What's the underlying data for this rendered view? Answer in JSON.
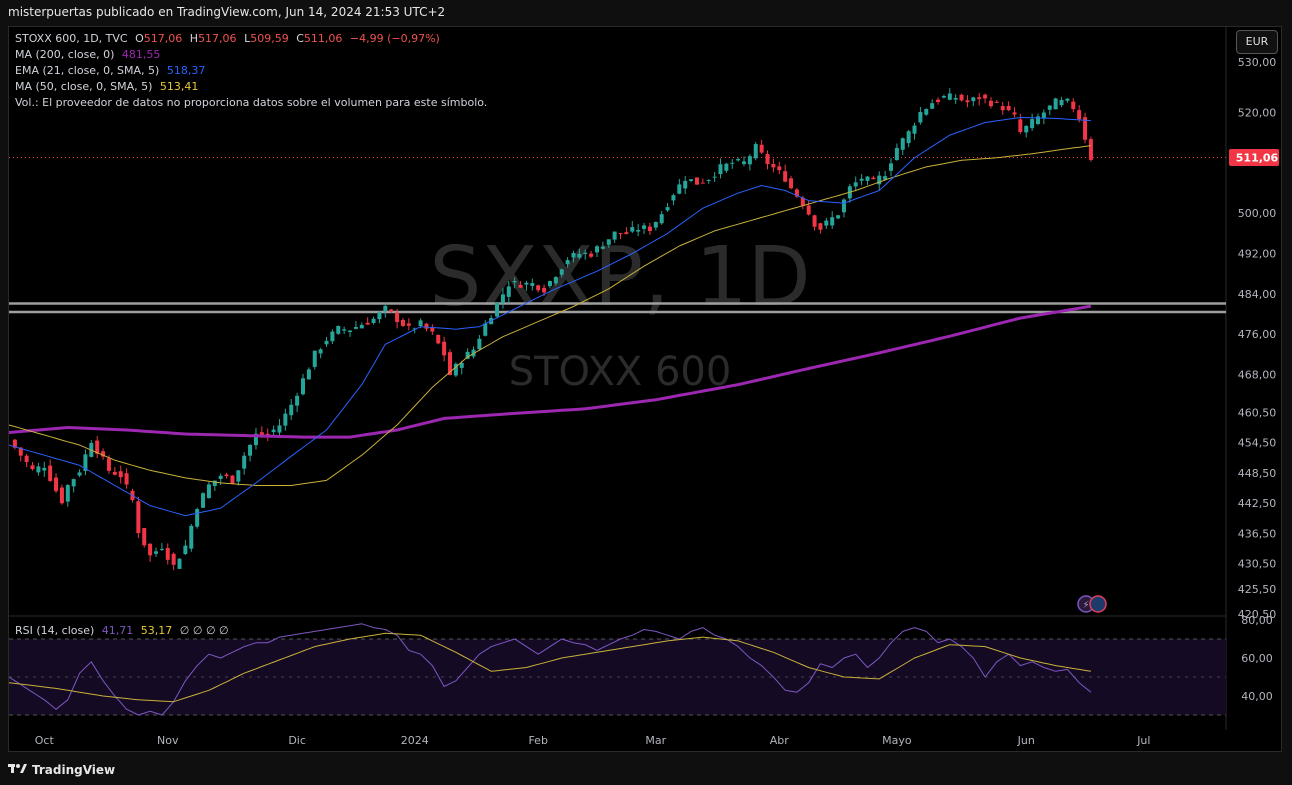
{
  "header": {
    "publisher": "misterpuertas publicado en TradingView.com, Jun 14, 2024 21:53 UTC+2"
  },
  "legend": {
    "symbol": "STOXX 600, 1D, TVC",
    "o_label": "O",
    "o": "517,06",
    "h_label": "H",
    "h": "517,06",
    "l_label": "L",
    "l": "509,59",
    "c_label": "C",
    "c": "511,06",
    "change": "−4,99 (−0,97%)",
    "ma200_label": "MA (200, close, 0)",
    "ma200": "481,55",
    "ema21_label": "EMA (21, close, 0, SMA, 5)",
    "ema21": "518,37",
    "ma50_label": "MA (50, close, 0, SMA, 5)",
    "ma50": "513,41",
    "vol_text": "Vol.: El proveedor de datos no proporciona datos sobre el volumen para este símbolo."
  },
  "rsi_legend": {
    "label": "RSI (14, close)",
    "v1": "41,71",
    "v2": "53,17",
    "rest": "∅ ∅ ∅ ∅"
  },
  "currency": "EUR",
  "watermark": {
    "big": "SXXP, 1D",
    "small": "STOXX 600"
  },
  "last_price_label": "511,06",
  "footer": {
    "brand": "TradingView"
  },
  "colors": {
    "up": "#26a69a",
    "down": "#f23645",
    "ma200": "#9c27b0",
    "ema21": "#2962ff",
    "ma50": "#c9b13a",
    "rsi": "#7e57c2"
  },
  "chart_data": {
    "type": "candlestick",
    "title": "STOXX 600, 1D, TVC",
    "price_axis": {
      "ticks": [
        "530,00",
        "520,00",
        "511,06",
        "500,00",
        "492,00",
        "484,00",
        "476,00",
        "468,00",
        "460,50",
        "454,50",
        "448,50",
        "442,50",
        "436,50",
        "430,50",
        "425,50",
        "420,50"
      ],
      "range": [
        420,
        532
      ]
    },
    "time_axis": {
      "ticks": [
        "Oct",
        "Nov",
        "Dic",
        "2024",
        "Feb",
        "Mar",
        "Abr",
        "Mayo",
        "Jun",
        "Jul"
      ]
    },
    "horizontal_lines": [
      482.1,
      480.4
    ],
    "last_price": 511.06,
    "close_path": [
      [
        0,
        455
      ],
      [
        2,
        452
      ],
      [
        4,
        449
      ],
      [
        6,
        450
      ],
      [
        8,
        445
      ],
      [
        9,
        443
      ],
      [
        10,
        446
      ],
      [
        12,
        449
      ],
      [
        14,
        455
      ],
      [
        15,
        453
      ],
      [
        17,
        449
      ],
      [
        19,
        448
      ],
      [
        21,
        443
      ],
      [
        22,
        437
      ],
      [
        24,
        432
      ],
      [
        26,
        434
      ],
      [
        27,
        432
      ],
      [
        28,
        430
      ],
      [
        30,
        434
      ],
      [
        32,
        442
      ],
      [
        34,
        446
      ],
      [
        36,
        448
      ],
      [
        38,
        447
      ],
      [
        40,
        452
      ],
      [
        42,
        456
      ],
      [
        44,
        456
      ],
      [
        46,
        458
      ],
      [
        48,
        462
      ],
      [
        50,
        467
      ],
      [
        52,
        472
      ],
      [
        54,
        475
      ],
      [
        56,
        477
      ],
      [
        58,
        477
      ],
      [
        60,
        478
      ],
      [
        62,
        479
      ],
      [
        64,
        481
      ],
      [
        66,
        479
      ],
      [
        68,
        477
      ],
      [
        70,
        478
      ],
      [
        72,
        476
      ],
      [
        74,
        472
      ],
      [
        75,
        468
      ],
      [
        77,
        471
      ],
      [
        79,
        473
      ],
      [
        81,
        478
      ],
      [
        83,
        482
      ],
      [
        85,
        486
      ],
      [
        87,
        486
      ],
      [
        89,
        486
      ],
      [
        91,
        485
      ],
      [
        93,
        488
      ],
      [
        95,
        491
      ],
      [
        97,
        492
      ],
      [
        99,
        492
      ],
      [
        101,
        494
      ],
      [
        103,
        496
      ],
      [
        105,
        496
      ],
      [
        107,
        497
      ],
      [
        109,
        497
      ],
      [
        111,
        500
      ],
      [
        113,
        504
      ],
      [
        115,
        507
      ],
      [
        117,
        506
      ],
      [
        119,
        507
      ],
      [
        121,
        509
      ],
      [
        123,
        510
      ],
      [
        125,
        510
      ],
      [
        127,
        513
      ],
      [
        129,
        510
      ],
      [
        131,
        508
      ],
      [
        132,
        507
      ],
      [
        133,
        505
      ],
      [
        135,
        502
      ],
      [
        136,
        500
      ],
      [
        137,
        498
      ],
      [
        138,
        497
      ],
      [
        139,
        498
      ],
      [
        141,
        500
      ],
      [
        143,
        505
      ],
      [
        145,
        507
      ],
      [
        147,
        506
      ],
      [
        149,
        508
      ],
      [
        151,
        513
      ],
      [
        153,
        516
      ],
      [
        155,
        520
      ],
      [
        157,
        522
      ],
      [
        159,
        523
      ],
      [
        161,
        523
      ],
      [
        163,
        522
      ],
      [
        165,
        523
      ],
      [
        167,
        522
      ],
      [
        169,
        521
      ],
      [
        171,
        519
      ],
      [
        172,
        516
      ],
      [
        174,
        518
      ],
      [
        176,
        520
      ],
      [
        178,
        522
      ],
      [
        180,
        522
      ],
      [
        181,
        521
      ],
      [
        182,
        519
      ],
      [
        183,
        515
      ],
      [
        184,
        511
      ]
    ],
    "ma200_path": [
      [
        0,
        456.5
      ],
      [
        10,
        457.5
      ],
      [
        20,
        457
      ],
      [
        30,
        456.2
      ],
      [
        40,
        455.9
      ],
      [
        50,
        455.6
      ],
      [
        58,
        455.6
      ],
      [
        66,
        457
      ],
      [
        74,
        459.3
      ],
      [
        86,
        460.3
      ],
      [
        98,
        461.2
      ],
      [
        110,
        463
      ],
      [
        124,
        466
      ],
      [
        136,
        469.2
      ],
      [
        148,
        472.3
      ],
      [
        160,
        475.6
      ],
      [
        172,
        479.2
      ],
      [
        184,
        481.55
      ]
    ],
    "ema21_path": [
      [
        0,
        454
      ],
      [
        6,
        452
      ],
      [
        12,
        450
      ],
      [
        18,
        446
      ],
      [
        24,
        442
      ],
      [
        30,
        440
      ],
      [
        36,
        441.5
      ],
      [
        42,
        446.5
      ],
      [
        48,
        451.8
      ],
      [
        54,
        457
      ],
      [
        60,
        466
      ],
      [
        64,
        474
      ],
      [
        70,
        477.5
      ],
      [
        76,
        477
      ],
      [
        80,
        477.5
      ],
      [
        86,
        481
      ],
      [
        92,
        484.5
      ],
      [
        100,
        488.5
      ],
      [
        106,
        492
      ],
      [
        112,
        496
      ],
      [
        118,
        501
      ],
      [
        124,
        504
      ],
      [
        128,
        505.5
      ],
      [
        132,
        504.5
      ],
      [
        136,
        502.5
      ],
      [
        142,
        502
      ],
      [
        148,
        504.5
      ],
      [
        154,
        511
      ],
      [
        160,
        515.5
      ],
      [
        166,
        518
      ],
      [
        172,
        519
      ],
      [
        178,
        518.8
      ],
      [
        184,
        518.37
      ]
    ],
    "ma50_path": [
      [
        0,
        458
      ],
      [
        6,
        456
      ],
      [
        12,
        454
      ],
      [
        18,
        451
      ],
      [
        24,
        449
      ],
      [
        30,
        447.5
      ],
      [
        36,
        446.5
      ],
      [
        42,
        446
      ],
      [
        48,
        446
      ],
      [
        54,
        447
      ],
      [
        60,
        452
      ],
      [
        66,
        458
      ],
      [
        72,
        465.5
      ],
      [
        78,
        471.5
      ],
      [
        84,
        475.5
      ],
      [
        90,
        478.5
      ],
      [
        96,
        481.5
      ],
      [
        102,
        485
      ],
      [
        108,
        489.5
      ],
      [
        114,
        493.5
      ],
      [
        120,
        496.5
      ],
      [
        126,
        498.5
      ],
      [
        132,
        500.5
      ],
      [
        138,
        502.5
      ],
      [
        144,
        504.5
      ],
      [
        150,
        507
      ],
      [
        156,
        509.2
      ],
      [
        162,
        510.5
      ],
      [
        168,
        511
      ],
      [
        174,
        511.8
      ],
      [
        180,
        512.8
      ],
      [
        184,
        513.41
      ]
    ],
    "rsi": {
      "label": "RSI (14, close)",
      "ticks": [
        "80,00",
        "60,00",
        "40,00"
      ],
      "bands": [
        70,
        30
      ],
      "mid": 50,
      "values_path": [
        [
          0,
          50
        ],
        [
          3,
          44
        ],
        [
          6,
          38
        ],
        [
          8,
          33
        ],
        [
          10,
          38
        ],
        [
          12,
          52
        ],
        [
          14,
          58
        ],
        [
          16,
          48
        ],
        [
          18,
          40
        ],
        [
          20,
          33
        ],
        [
          22,
          30
        ],
        [
          24,
          32
        ],
        [
          26,
          30
        ],
        [
          28,
          37
        ],
        [
          30,
          48
        ],
        [
          32,
          56
        ],
        [
          34,
          62
        ],
        [
          36,
          60
        ],
        [
          38,
          63
        ],
        [
          40,
          66
        ],
        [
          42,
          68
        ],
        [
          44,
          68
        ],
        [
          46,
          71
        ],
        [
          48,
          72
        ],
        [
          50,
          73
        ],
        [
          52,
          74
        ],
        [
          54,
          75
        ],
        [
          56,
          76
        ],
        [
          58,
          77
        ],
        [
          60,
          78
        ],
        [
          62,
          76
        ],
        [
          64,
          75
        ],
        [
          66,
          72
        ],
        [
          68,
          64
        ],
        [
          70,
          62
        ],
        [
          72,
          56
        ],
        [
          74,
          45
        ],
        [
          76,
          48
        ],
        [
          78,
          55
        ],
        [
          80,
          62
        ],
        [
          82,
          66
        ],
        [
          84,
          68
        ],
        [
          86,
          70
        ],
        [
          88,
          66
        ],
        [
          90,
          62
        ],
        [
          92,
          66
        ],
        [
          94,
          70
        ],
        [
          96,
          68
        ],
        [
          98,
          67
        ],
        [
          100,
          64
        ],
        [
          102,
          67
        ],
        [
          104,
          70
        ],
        [
          106,
          72
        ],
        [
          108,
          75
        ],
        [
          110,
          74
        ],
        [
          112,
          72
        ],
        [
          114,
          70
        ],
        [
          116,
          74
        ],
        [
          118,
          76
        ],
        [
          120,
          72
        ],
        [
          122,
          70
        ],
        [
          124,
          66
        ],
        [
          126,
          60
        ],
        [
          128,
          56
        ],
        [
          130,
          50
        ],
        [
          132,
          43
        ],
        [
          134,
          42
        ],
        [
          136,
          47
        ],
        [
          138,
          57
        ],
        [
          140,
          55
        ],
        [
          142,
          60
        ],
        [
          144,
          62
        ],
        [
          146,
          55
        ],
        [
          148,
          60
        ],
        [
          150,
          68
        ],
        [
          152,
          74
        ],
        [
          154,
          76
        ],
        [
          156,
          74
        ],
        [
          158,
          68
        ],
        [
          160,
          70
        ],
        [
          162,
          66
        ],
        [
          164,
          60
        ],
        [
          166,
          50
        ],
        [
          168,
          58
        ],
        [
          170,
          62
        ],
        [
          172,
          56
        ],
        [
          174,
          58
        ],
        [
          176,
          55
        ],
        [
          178,
          53
        ],
        [
          180,
          54
        ],
        [
          182,
          47
        ],
        [
          184,
          42
        ]
      ],
      "ma_path": [
        [
          0,
          47
        ],
        [
          8,
          44
        ],
        [
          16,
          40
        ],
        [
          22,
          38
        ],
        [
          28,
          37
        ],
        [
          34,
          43
        ],
        [
          40,
          52
        ],
        [
          46,
          59
        ],
        [
          52,
          66
        ],
        [
          58,
          70
        ],
        [
          64,
          73
        ],
        [
          70,
          72
        ],
        [
          76,
          63
        ],
        [
          82,
          53
        ],
        [
          88,
          55
        ],
        [
          94,
          60
        ],
        [
          100,
          63
        ],
        [
          106,
          66
        ],
        [
          112,
          69
        ],
        [
          118,
          71
        ],
        [
          124,
          69
        ],
        [
          130,
          63
        ],
        [
          136,
          55
        ],
        [
          142,
          50
        ],
        [
          148,
          49
        ],
        [
          154,
          60
        ],
        [
          160,
          67
        ],
        [
          166,
          66
        ],
        [
          172,
          60
        ],
        [
          178,
          56
        ],
        [
          184,
          53
        ]
      ]
    }
  }
}
